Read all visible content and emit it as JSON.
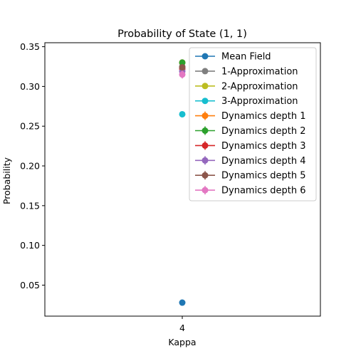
{
  "chart_data": {
    "type": "scatter",
    "title": "Probability of State (1, 1)",
    "xlabel": "Kappa",
    "ylabel": "Probability",
    "x_ticks": [
      "4"
    ],
    "y_ticks": [
      0.05,
      0.1,
      0.15,
      0.2,
      0.25,
      0.3,
      0.35
    ],
    "y_tick_labels": [
      "0.05",
      "0.10",
      "0.15",
      "0.20",
      "0.25",
      "0.30",
      "0.35"
    ],
    "ylim": [
      0.011,
      0.355
    ],
    "legend_position": "top-right",
    "grid": false,
    "series": [
      {
        "name": "Mean Field",
        "x": 4,
        "y": 0.028,
        "color": "#1f77b4",
        "error": 0
      },
      {
        "name": "1-Approximation",
        "x": 4,
        "y": 0.325,
        "color": "#7f7f7f",
        "error": 0
      },
      {
        "name": "2-Approximation",
        "x": 4,
        "y": 0.33,
        "color": "#bcbd22",
        "error": 0
      },
      {
        "name": "3-Approximation",
        "x": 4,
        "y": 0.265,
        "color": "#17becf",
        "error": 0
      },
      {
        "name": "Dynamics depth 1",
        "x": 4,
        "y": 0.33,
        "color": "#ff7f0e",
        "error": 0.004
      },
      {
        "name": "Dynamics depth 2",
        "x": 4,
        "y": 0.33,
        "color": "#2ca02c",
        "error": 0.004
      },
      {
        "name": "Dynamics depth 3",
        "x": 4,
        "y": 0.322,
        "color": "#d62728",
        "error": 0.004
      },
      {
        "name": "Dynamics depth 4",
        "x": 4,
        "y": 0.319,
        "color": "#9467bd",
        "error": 0.004
      },
      {
        "name": "Dynamics depth 5",
        "x": 4,
        "y": 0.324,
        "color": "#8c564b",
        "error": 0.004
      },
      {
        "name": "Dynamics depth 6",
        "x": 4,
        "y": 0.315,
        "color": "#e377c2",
        "error": 0.005
      }
    ]
  }
}
